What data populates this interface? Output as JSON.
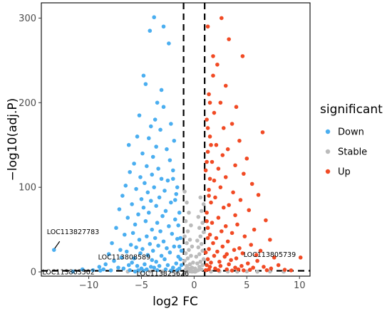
{
  "chart_data": {
    "type": "scatter",
    "title": "",
    "xlabel": "log2 FC",
    "ylabel": "-log10(adj.P)",
    "xlim": [
      -14.5,
      11
    ],
    "ylim": [
      -5,
      318
    ],
    "x_ticks": [
      -10,
      -5,
      0,
      5,
      10
    ],
    "y_ticks": [
      0,
      100,
      200,
      300
    ],
    "grid": false,
    "thresholds": {
      "x": [
        -1,
        1
      ],
      "y": [
        1.3
      ]
    },
    "legend": {
      "title": "significant",
      "placement": "right",
      "entries": [
        {
          "name": "Down",
          "color": "#4aaef0"
        },
        {
          "name": "Stable",
          "color": "#bbbbbb"
        },
        {
          "name": "Up",
          "color": "#f14a24"
        }
      ]
    },
    "highlighted_points": [
      {
        "label": "LOC113827783",
        "x": -13.3,
        "y": 26,
        "group": "Down"
      },
      {
        "label": "LOC113808589",
        "x": -10.6,
        "y": 3,
        "group": "Down"
      },
      {
        "label": "LOC113805739",
        "x": 10.1,
        "y": 17,
        "group": "Up"
      },
      {
        "label": "LOC113803502",
        "x": -11.5,
        "y": 0.5,
        "group": "Down"
      },
      {
        "label": "LOC113825626",
        "x": -5.6,
        "y": 0.4,
        "group": "Down"
      }
    ],
    "series": [
      {
        "name": "Down",
        "points": [
          [
            -3.8,
            301
          ],
          [
            -2.9,
            290
          ],
          [
            -4.2,
            285
          ],
          [
            -2.4,
            270
          ],
          [
            -4.8,
            232
          ],
          [
            -4.6,
            222
          ],
          [
            -3.1,
            215
          ],
          [
            -3.5,
            200
          ],
          [
            -2.9,
            195
          ],
          [
            -5.2,
            185
          ],
          [
            -3.7,
            180
          ],
          [
            -2.2,
            175
          ],
          [
            -4.1,
            172
          ],
          [
            -3.2,
            168
          ],
          [
            -5.4,
            160
          ],
          [
            -4.3,
            158
          ],
          [
            -1.9,
            155
          ],
          [
            -6.2,
            150
          ],
          [
            -3.6,
            148
          ],
          [
            -2.6,
            145
          ],
          [
            -4.9,
            140
          ],
          [
            -3.9,
            136
          ],
          [
            -2.3,
            132
          ],
          [
            -5.7,
            128
          ],
          [
            -4.5,
            125
          ],
          [
            -3.4,
            122
          ],
          [
            -2.0,
            120
          ],
          [
            -6.1,
            118
          ],
          [
            -4.0,
            115
          ],
          [
            -5.1,
            112
          ],
          [
            -3.1,
            110
          ],
          [
            -2.5,
            108
          ],
          [
            -4.7,
            105
          ],
          [
            -6.5,
            102
          ],
          [
            -3.8,
            100
          ],
          [
            -5.5,
            98
          ],
          [
            -2.8,
            96
          ],
          [
            -4.4,
            94
          ],
          [
            -1.7,
            92
          ],
          [
            -6.8,
            90
          ],
          [
            -3.3,
            88
          ],
          [
            -5.0,
            86
          ],
          [
            -4.1,
            84
          ],
          [
            -2.2,
            82
          ],
          [
            -5.9,
            80
          ],
          [
            -3.6,
            78
          ],
          [
            -4.8,
            76
          ],
          [
            -7.1,
            74
          ],
          [
            -2.7,
            72
          ],
          [
            -4.3,
            70
          ],
          [
            -5.3,
            68
          ],
          [
            -3.0,
            66
          ],
          [
            -6.3,
            64
          ],
          [
            -1.8,
            62
          ],
          [
            -4.6,
            60
          ],
          [
            -3.5,
            58
          ],
          [
            -5.6,
            56
          ],
          [
            -2.4,
            54
          ],
          [
            -7.4,
            52
          ],
          [
            -4.0,
            50
          ],
          [
            -3.2,
            48
          ],
          [
            -5.8,
            46
          ],
          [
            -2.1,
            45
          ],
          [
            -6.6,
            44
          ],
          [
            -4.5,
            42
          ],
          [
            -3.7,
            40
          ],
          [
            -1.6,
            39
          ],
          [
            -5.2,
            38
          ],
          [
            -2.9,
            36
          ],
          [
            -7.8,
            34
          ],
          [
            -4.2,
            33
          ],
          [
            -6.0,
            32
          ],
          [
            -3.4,
            31
          ],
          [
            -1.9,
            30
          ],
          [
            -5.5,
            29
          ],
          [
            -2.6,
            28
          ],
          [
            -4.9,
            27
          ],
          [
            -7.0,
            26
          ],
          [
            -3.9,
            25
          ],
          [
            -6.4,
            24
          ],
          [
            -2.3,
            23
          ],
          [
            -5.1,
            22
          ],
          [
            -8.1,
            21
          ],
          [
            -4.4,
            20
          ],
          [
            -3.1,
            19
          ],
          [
            -1.5,
            18
          ],
          [
            -6.9,
            17
          ],
          [
            -5.7,
            16
          ],
          [
            -2.8,
            15
          ],
          [
            -4.0,
            14
          ],
          [
            -7.6,
            13
          ],
          [
            -3.6,
            12
          ],
          [
            -5.9,
            11
          ],
          [
            -1.7,
            10
          ],
          [
            -8.4,
            9
          ],
          [
            -4.7,
            9
          ],
          [
            -2.5,
            8
          ],
          [
            -6.2,
            8
          ],
          [
            -3.3,
            7
          ],
          [
            -5.4,
            7
          ],
          [
            -9.0,
            6
          ],
          [
            -4.1,
            6
          ],
          [
            -2.0,
            5
          ],
          [
            -7.2,
            5
          ],
          [
            -3.8,
            5
          ],
          [
            -6.7,
            4
          ],
          [
            -1.4,
            4
          ],
          [
            -5.0,
            4
          ],
          [
            -8.6,
            3
          ],
          [
            -2.7,
            3
          ],
          [
            -4.5,
            3
          ],
          [
            -9.6,
            2
          ],
          [
            -3.5,
            2
          ],
          [
            -6.1,
            2
          ],
          [
            -1.6,
            2
          ],
          [
            -7.9,
            1.8
          ],
          [
            -5.3,
            1.8
          ],
          [
            -2.2,
            1.6
          ],
          [
            -8.9,
            1.6
          ],
          [
            -4.8,
            1.5
          ],
          [
            -1.3,
            40
          ],
          [
            -1.2,
            25
          ],
          [
            -1.5,
            55
          ],
          [
            -1.4,
            70
          ],
          [
            -1.8,
            85
          ],
          [
            -1.6,
            100
          ],
          [
            -2.0,
            110
          ],
          [
            -1.3,
            15
          ],
          [
            -1.2,
            8
          ],
          [
            -1.4,
            30
          ],
          [
            -13.3,
            26
          ],
          [
            -10.6,
            3
          ],
          [
            -11.5,
            0.5
          ],
          [
            -5.6,
            0.4
          ]
        ]
      },
      {
        "name": "Stable",
        "points": [
          [
            -0.9,
            95
          ],
          [
            -0.7,
            82
          ],
          [
            -0.5,
            70
          ],
          [
            -0.8,
            60
          ],
          [
            -0.3,
            55
          ],
          [
            -0.6,
            48
          ],
          [
            -0.9,
            42
          ],
          [
            -0.4,
            38
          ],
          [
            -0.7,
            34
          ],
          [
            -0.2,
            30
          ],
          [
            -0.5,
            26
          ],
          [
            -0.8,
            22
          ],
          [
            -0.3,
            19
          ],
          [
            -0.6,
            16
          ],
          [
            -0.9,
            13
          ],
          [
            -0.1,
            11
          ],
          [
            -0.4,
            9
          ],
          [
            -0.7,
            7
          ],
          [
            -0.2,
            5
          ],
          [
            -0.5,
            4
          ],
          [
            -0.8,
            3
          ],
          [
            -0.3,
            2
          ],
          [
            -0.6,
            1
          ],
          [
            0.0,
            0.5
          ],
          [
            0.2,
            1
          ],
          [
            0.4,
            2
          ],
          [
            0.7,
            3
          ],
          [
            0.1,
            4
          ],
          [
            0.5,
            6
          ],
          [
            0.8,
            8
          ],
          [
            0.3,
            10
          ],
          [
            0.6,
            12
          ],
          [
            0.9,
            15
          ],
          [
            0.2,
            18
          ],
          [
            0.5,
            21
          ],
          [
            0.8,
            25
          ],
          [
            0.4,
            29
          ],
          [
            0.7,
            33
          ],
          [
            0.3,
            37
          ],
          [
            0.6,
            42
          ],
          [
            0.9,
            47
          ],
          [
            0.5,
            52
          ],
          [
            0.8,
            58
          ],
          [
            0.4,
            65
          ],
          [
            0.7,
            72
          ],
          [
            0.9,
            80
          ],
          [
            0.6,
            88
          ],
          [
            -0.2,
            0.3
          ],
          [
            0.1,
            0.2
          ],
          [
            -0.4,
            0.6
          ],
          [
            -3.0,
            0.5
          ],
          [
            -2.2,
            0.8
          ],
          [
            -1.6,
            0.3
          ],
          [
            1.6,
            0.4
          ],
          [
            2.4,
            0.7
          ],
          [
            3.2,
            0.5
          ],
          [
            4.1,
            0.3
          ],
          [
            5.0,
            0.6
          ],
          [
            6.0,
            0.2
          ],
          [
            7.2,
            0.4
          ],
          [
            -4.2,
            0.3
          ],
          [
            -5.1,
            0.2
          ],
          [
            -6.3,
            0.4
          ],
          [
            8.5,
            0.2
          ]
        ]
      },
      {
        "name": "Up",
        "points": [
          [
            2.6,
            300
          ],
          [
            1.3,
            290
          ],
          [
            3.3,
            275
          ],
          [
            4.6,
            255
          ],
          [
            2.2,
            245
          ],
          [
            1.8,
            232
          ],
          [
            3.0,
            220
          ],
          [
            1.4,
            210
          ],
          [
            2.5,
            200
          ],
          [
            4.0,
            195
          ],
          [
            1.9,
            188
          ],
          [
            1.2,
            180
          ],
          [
            3.6,
            175
          ],
          [
            2.8,
            170
          ],
          [
            6.5,
            165
          ],
          [
            1.5,
            160
          ],
          [
            4.3,
            155
          ],
          [
            2.1,
            150
          ],
          [
            3.2,
            145
          ],
          [
            1.3,
            142
          ],
          [
            2.7,
            138
          ],
          [
            5.0,
            134
          ],
          [
            1.7,
            130
          ],
          [
            3.9,
            126
          ],
          [
            2.3,
            122
          ],
          [
            1.1,
            120
          ],
          [
            4.7,
            116
          ],
          [
            3.0,
            112
          ],
          [
            1.9,
            108
          ],
          [
            5.5,
            104
          ],
          [
            2.5,
            100
          ],
          [
            1.4,
            97
          ],
          [
            3.7,
            94
          ],
          [
            6.1,
            91
          ],
          [
            2.0,
            88
          ],
          [
            4.4,
            85
          ],
          [
            1.6,
            82
          ],
          [
            3.3,
            79
          ],
          [
            2.8,
            76
          ],
          [
            5.2,
            73
          ],
          [
            1.2,
            70
          ],
          [
            3.9,
            67
          ],
          [
            2.3,
            64
          ],
          [
            6.8,
            61
          ],
          [
            1.7,
            58
          ],
          [
            4.1,
            56
          ],
          [
            3.0,
            54
          ],
          [
            1.3,
            52
          ],
          [
            5.7,
            50
          ],
          [
            2.6,
            48
          ],
          [
            3.6,
            46
          ],
          [
            1.5,
            44
          ],
          [
            4.8,
            42
          ],
          [
            2.1,
            40
          ],
          [
            7.2,
            38
          ],
          [
            3.2,
            36
          ],
          [
            1.8,
            34
          ],
          [
            5.4,
            32
          ],
          [
            2.7,
            30
          ],
          [
            4.3,
            28
          ],
          [
            1.4,
            27
          ],
          [
            3.8,
            26
          ],
          [
            6.3,
            25
          ],
          [
            2.2,
            24
          ],
          [
            1.1,
            23
          ],
          [
            4.6,
            22
          ],
          [
            3.1,
            21
          ],
          [
            5.9,
            20
          ],
          [
            1.9,
            19
          ],
          [
            2.9,
            18
          ],
          [
            7.6,
            17
          ],
          [
            4.0,
            16
          ],
          [
            1.3,
            15
          ],
          [
            3.5,
            14
          ],
          [
            6.0,
            13
          ],
          [
            2.4,
            12
          ],
          [
            1.6,
            11
          ],
          [
            5.1,
            10
          ],
          [
            3.3,
            9
          ],
          [
            8.0,
            8
          ],
          [
            1.2,
            8
          ],
          [
            4.5,
            7
          ],
          [
            2.5,
            7
          ],
          [
            6.6,
            6
          ],
          [
            1.5,
            6
          ],
          [
            3.9,
            5
          ],
          [
            5.6,
            5
          ],
          [
            2.0,
            4
          ],
          [
            7.3,
            4
          ],
          [
            4.2,
            3
          ],
          [
            1.4,
            3
          ],
          [
            3.1,
            3
          ],
          [
            8.6,
            2.5
          ],
          [
            5.3,
            2.5
          ],
          [
            2.3,
            2
          ],
          [
            6.9,
            2
          ],
          [
            1.1,
            2
          ],
          [
            4.7,
            1.8
          ],
          [
            9.2,
            1.8
          ],
          [
            3.6,
            1.6
          ],
          [
            1.3,
            40
          ],
          [
            1.2,
            60
          ],
          [
            1.4,
            90
          ],
          [
            1.5,
            110
          ],
          [
            1.2,
            130
          ],
          [
            1.6,
            150
          ],
          [
            1.3,
            170
          ],
          [
            1.5,
            200
          ],
          [
            1.8,
            255
          ],
          [
            10.1,
            17
          ]
        ]
      }
    ]
  }
}
